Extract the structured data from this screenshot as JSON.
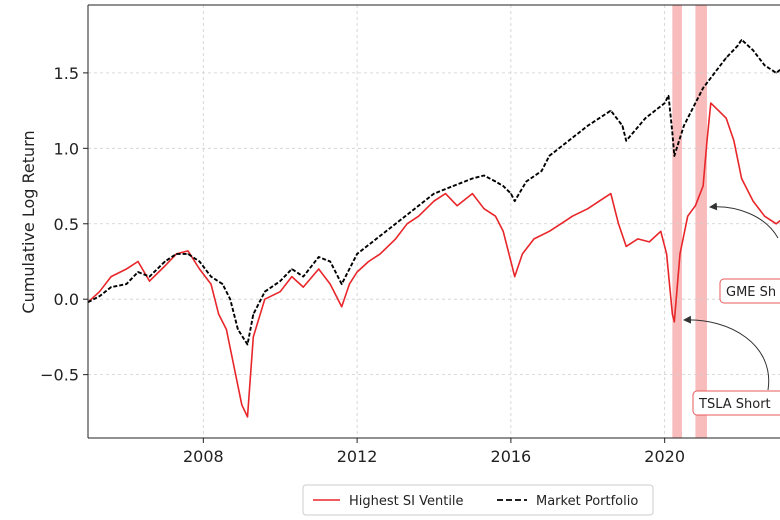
{
  "chart_data": {
    "type": "line",
    "title": "",
    "xlabel": "",
    "ylabel": "Cumulative Log Return",
    "xlim": [
      2005.0,
      2023.0
    ],
    "ylim": [
      -0.92,
      1.95
    ],
    "xticks": [
      2008,
      2012,
      2016,
      2020
    ],
    "xtick_labels": [
      "2008",
      "2012",
      "2016",
      "2020"
    ],
    "yticks": [
      -0.5,
      0.0,
      0.5,
      1.0,
      1.5
    ],
    "ytick_labels": [
      "−0.5",
      "0.0",
      "0.5",
      "1.0",
      "1.5"
    ],
    "grid": true,
    "colors": {
      "highest_si": "#e8262a",
      "market": "#000000",
      "band": "#f6a6a6",
      "anno_border": "#e85a5a"
    },
    "series": [
      {
        "name": "Highest SI Ventile",
        "style": "solid",
        "x": [
          2005.0,
          2005.3,
          2005.6,
          2006.0,
          2006.3,
          2006.6,
          2007.0,
          2007.3,
          2007.6,
          2007.9,
          2008.2,
          2008.4,
          2008.6,
          2008.8,
          2009.0,
          2009.15,
          2009.3,
          2009.6,
          2010.0,
          2010.3,
          2010.6,
          2011.0,
          2011.3,
          2011.6,
          2011.8,
          2012.0,
          2012.3,
          2012.6,
          2013.0,
          2013.3,
          2013.6,
          2014.0,
          2014.3,
          2014.6,
          2015.0,
          2015.3,
          2015.6,
          2015.8,
          2016.0,
          2016.1,
          2016.3,
          2016.6,
          2017.0,
          2017.3,
          2017.6,
          2018.0,
          2018.3,
          2018.6,
          2018.8,
          2019.0,
          2019.3,
          2019.6,
          2019.9,
          2020.05,
          2020.2,
          2020.25,
          2020.4,
          2020.6,
          2020.8,
          2021.0,
          2021.1,
          2021.2,
          2021.4,
          2021.6,
          2021.8,
          2022.0,
          2022.3,
          2022.6,
          2022.9,
          2023.0
        ],
        "values": [
          -0.02,
          0.05,
          0.15,
          0.2,
          0.25,
          0.12,
          0.22,
          0.3,
          0.32,
          0.2,
          0.1,
          -0.1,
          -0.2,
          -0.45,
          -0.7,
          -0.78,
          -0.25,
          0.0,
          0.05,
          0.15,
          0.08,
          0.2,
          0.1,
          -0.05,
          0.1,
          0.18,
          0.25,
          0.3,
          0.4,
          0.5,
          0.55,
          0.65,
          0.7,
          0.62,
          0.7,
          0.6,
          0.55,
          0.45,
          0.25,
          0.15,
          0.3,
          0.4,
          0.45,
          0.5,
          0.55,
          0.6,
          0.65,
          0.7,
          0.5,
          0.35,
          0.4,
          0.38,
          0.45,
          0.3,
          -0.1,
          -0.15,
          0.3,
          0.55,
          0.62,
          0.75,
          1.05,
          1.3,
          1.25,
          1.2,
          1.05,
          0.8,
          0.65,
          0.55,
          0.5,
          0.52
        ]
      },
      {
        "name": "Market Portfolio",
        "style": "dashed",
        "x": [
          2005.0,
          2005.3,
          2005.6,
          2006.0,
          2006.3,
          2006.6,
          2007.0,
          2007.3,
          2007.6,
          2007.9,
          2008.2,
          2008.5,
          2008.7,
          2008.9,
          2009.15,
          2009.3,
          2009.6,
          2010.0,
          2010.3,
          2010.6,
          2011.0,
          2011.3,
          2011.6,
          2011.8,
          2012.0,
          2012.5,
          2013.0,
          2013.5,
          2014.0,
          2014.5,
          2015.0,
          2015.3,
          2015.6,
          2015.8,
          2016.0,
          2016.1,
          2016.4,
          2016.8,
          2017.0,
          2017.5,
          2018.0,
          2018.3,
          2018.6,
          2018.9,
          2019.0,
          2019.5,
          2020.0,
          2020.1,
          2020.2,
          2020.25,
          2020.5,
          2020.8,
          2021.0,
          2021.3,
          2021.6,
          2021.9,
          2022.0,
          2022.3,
          2022.6,
          2022.9,
          2023.0
        ],
        "values": [
          -0.02,
          0.02,
          0.08,
          0.1,
          0.18,
          0.15,
          0.25,
          0.3,
          0.3,
          0.25,
          0.15,
          0.1,
          0.0,
          -0.2,
          -0.3,
          -0.1,
          0.05,
          0.12,
          0.2,
          0.15,
          0.28,
          0.25,
          0.1,
          0.2,
          0.3,
          0.4,
          0.5,
          0.6,
          0.7,
          0.75,
          0.8,
          0.82,
          0.78,
          0.75,
          0.7,
          0.65,
          0.78,
          0.85,
          0.95,
          1.05,
          1.15,
          1.2,
          1.25,
          1.15,
          1.05,
          1.2,
          1.3,
          1.35,
          1.1,
          0.95,
          1.15,
          1.3,
          1.4,
          1.5,
          1.6,
          1.68,
          1.72,
          1.65,
          1.55,
          1.5,
          1.52
        ]
      }
    ],
    "shaded_periods": [
      [
        2020.2,
        2020.45
      ],
      [
        2020.8,
        2021.1
      ]
    ],
    "annotations": [
      {
        "text": "TSLA Short",
        "point": [
          2020.25,
          -0.14
        ]
      },
      {
        "text": "GME Sh",
        "point": [
          2021.1,
          0.61
        ]
      }
    ],
    "legend": {
      "position": "bottom-center",
      "items": [
        {
          "label": "Highest SI Ventile",
          "series": 0
        },
        {
          "label": "Market Portfolio",
          "series": 1
        }
      ]
    }
  }
}
